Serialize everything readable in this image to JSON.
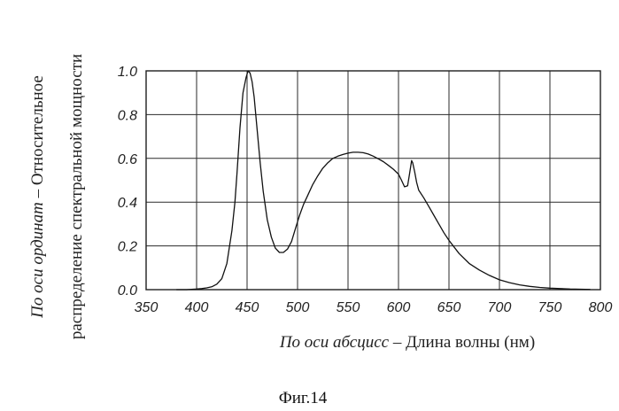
{
  "chart_data": {
    "type": "line",
    "title": "",
    "xlabel_italic": "По оси абсцисс –",
    "xlabel_rest": " Длина волны (нм)",
    "ylabel_line1_italic": "По оси ординат –",
    "ylabel_line1_rest": " Относительное",
    "ylabel_line2": "распределение спектральной мощности",
    "xlim": [
      350,
      800
    ],
    "ylim": [
      0.0,
      1.0
    ],
    "xticks": [
      "350",
      "400",
      "450",
      "500",
      "550",
      "600",
      "650",
      "700",
      "750",
      "800"
    ],
    "yticks": [
      "0.0",
      "0.2",
      "0.4",
      "0.6",
      "0.8",
      "1.0"
    ],
    "grid": true,
    "series": [
      {
        "x": [
          380,
          390,
          400,
          405,
          410,
          415,
          420,
          425,
          430,
          435,
          438,
          440,
          443,
          446,
          449,
          451,
          453,
          455,
          457,
          460,
          463,
          466,
          470,
          474,
          478,
          482,
          486,
          490,
          494,
          498,
          502,
          506,
          510,
          515,
          520,
          525,
          530,
          535,
          540,
          545,
          550,
          555,
          560,
          565,
          570,
          575,
          580,
          585,
          590,
          595,
          600,
          603,
          606,
          609,
          611,
          613,
          614,
          616,
          618,
          620,
          625,
          630,
          635,
          640,
          645,
          650,
          660,
          670,
          680,
          690,
          700,
          710,
          720,
          730,
          740,
          750,
          760,
          770,
          780,
          790
        ],
        "y": [
          0.0,
          0.0,
          0.003,
          0.005,
          0.008,
          0.013,
          0.025,
          0.05,
          0.12,
          0.27,
          0.4,
          0.53,
          0.74,
          0.9,
          0.97,
          1.0,
          0.99,
          0.95,
          0.88,
          0.73,
          0.58,
          0.45,
          0.32,
          0.24,
          0.19,
          0.17,
          0.17,
          0.185,
          0.22,
          0.28,
          0.34,
          0.39,
          0.43,
          0.48,
          0.52,
          0.555,
          0.58,
          0.6,
          0.61,
          0.618,
          0.624,
          0.628,
          0.628,
          0.626,
          0.62,
          0.61,
          0.598,
          0.585,
          0.568,
          0.55,
          0.528,
          0.5,
          0.47,
          0.475,
          0.53,
          0.59,
          0.58,
          0.54,
          0.49,
          0.455,
          0.42,
          0.38,
          0.34,
          0.3,
          0.26,
          0.225,
          0.165,
          0.12,
          0.09,
          0.065,
          0.045,
          0.032,
          0.022,
          0.015,
          0.01,
          0.007,
          0.005,
          0.003,
          0.002,
          0.001
        ]
      }
    ]
  },
  "caption": "Фиг.14"
}
